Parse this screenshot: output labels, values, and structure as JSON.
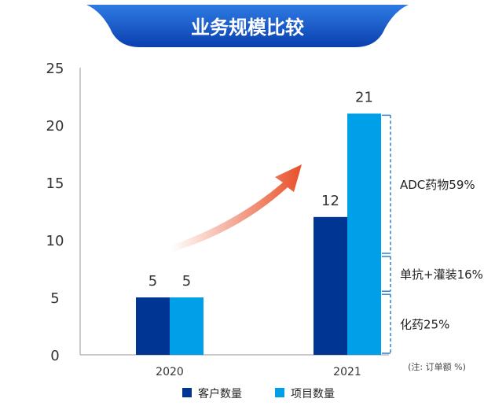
{
  "chart_data": {
    "type": "bar",
    "title": "业务规模比较",
    "categories": [
      "2020",
      "2021"
    ],
    "series": [
      {
        "name": "客户数量",
        "color": "#003594",
        "values": [
          5,
          12
        ]
      },
      {
        "name": "项目数量",
        "color": "#00A0E9",
        "values": [
          5,
          21
        ]
      }
    ],
    "ylim": [
      0,
      25
    ],
    "yticks": [
      0,
      5,
      10,
      15,
      20,
      25
    ],
    "grid": false,
    "legend": "bottom-center",
    "annotations": [
      {
        "text": "ADC药物59%",
        "from": 8.7,
        "to": 21
      },
      {
        "text": "单抗+灌装16%",
        "from": 5.4,
        "to": 8.7
      },
      {
        "text": "化药25%",
        "from": 0,
        "to": 5.4
      }
    ],
    "note": "(注: 订单额 %)",
    "colors": {
      "banner_dark": "#0A3FB0",
      "banner_light": "#2E7BE3",
      "axis": "#999999",
      "bracket": "#1F78C8",
      "arrow": "#E8502A",
      "text": "#333333"
    },
    "icons": [
      "growth-arrow-icon"
    ]
  }
}
